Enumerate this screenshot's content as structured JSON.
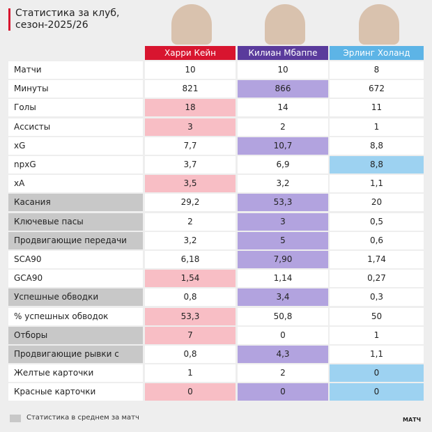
{
  "header": {
    "title": [
      "Статистика за клуб,",
      "сезон-2025/26"
    ]
  },
  "columns": [
    {
      "name": "Харри Кейн",
      "color": "#d8152f",
      "highlight_color": "#f8bec5"
    },
    {
      "name": "Килиан Мбаппе",
      "color": "#5a3b9c",
      "highlight_color": "#b2a3df"
    },
    {
      "name": "Эрлинг Холанд",
      "color": "#5db4e6",
      "highlight_color": "#9dd2f1"
    }
  ],
  "table": {
    "rows": [
      {
        "label": "Матчи",
        "values": [
          "10",
          "10",
          "8"
        ],
        "highlight": [
          false,
          false,
          false
        ],
        "per_match": false
      },
      {
        "label": "Минуты",
        "values": [
          "821",
          "866",
          "672"
        ],
        "highlight": [
          false,
          true,
          false
        ],
        "per_match": false
      },
      {
        "label": "Голы",
        "values": [
          "18",
          "14",
          "11"
        ],
        "highlight": [
          true,
          false,
          false
        ],
        "per_match": false
      },
      {
        "label": "Ассисты",
        "values": [
          "3",
          "2",
          "1"
        ],
        "highlight": [
          true,
          false,
          false
        ],
        "per_match": false
      },
      {
        "label": "xG",
        "values": [
          "7,7",
          "10,7",
          "8,8"
        ],
        "highlight": [
          false,
          true,
          false
        ],
        "per_match": false
      },
      {
        "label": "npxG",
        "values": [
          "3,7",
          "6,9",
          "8,8"
        ],
        "highlight": [
          false,
          false,
          true
        ],
        "per_match": false
      },
      {
        "label": "xA",
        "values": [
          "3,5",
          "3,2",
          "1,1"
        ],
        "highlight": [
          true,
          false,
          false
        ],
        "per_match": false
      },
      {
        "label": "Касания",
        "values": [
          "29,2",
          "53,3",
          "20"
        ],
        "highlight": [
          false,
          true,
          false
        ],
        "per_match": true
      },
      {
        "label": "Ключевые пасы",
        "values": [
          "2",
          "3",
          "0,5"
        ],
        "highlight": [
          false,
          true,
          false
        ],
        "per_match": true
      },
      {
        "label": "Продвигающие передачи",
        "values": [
          "3,2",
          "5",
          "0,6"
        ],
        "highlight": [
          false,
          true,
          false
        ],
        "per_match": true
      },
      {
        "label": "SCA90",
        "values": [
          "6,18",
          "7,90",
          "1,74"
        ],
        "highlight": [
          false,
          true,
          false
        ],
        "per_match": false
      },
      {
        "label": "GCA90",
        "values": [
          "1,54",
          "1,14",
          "0,27"
        ],
        "highlight": [
          true,
          false,
          false
        ],
        "per_match": false
      },
      {
        "label": "Успешные обводки",
        "values": [
          "0,8",
          "3,4",
          "0,3"
        ],
        "highlight": [
          false,
          true,
          false
        ],
        "per_match": true
      },
      {
        "label": "% успешных обводок",
        "values": [
          "53,3",
          "50,8",
          "50"
        ],
        "highlight": [
          true,
          false,
          false
        ],
        "per_match": false
      },
      {
        "label": "Отборы",
        "values": [
          "7",
          "0",
          "1"
        ],
        "highlight": [
          true,
          false,
          false
        ],
        "per_match": true
      },
      {
        "label": "Продвигающие рывки с мячом",
        "values": [
          "0,8",
          "4,3",
          "1,1"
        ],
        "highlight": [
          false,
          true,
          false
        ],
        "per_match": true
      },
      {
        "label": "Желтые карточки",
        "values": [
          "1",
          "2",
          "0"
        ],
        "highlight": [
          false,
          false,
          true
        ],
        "per_match": false
      },
      {
        "label": "Красные карточки",
        "values": [
          "0",
          "0",
          "0"
        ],
        "highlight": [
          true,
          true,
          true
        ],
        "per_match": false
      }
    ]
  },
  "footer": {
    "legend": "Статистика в среднем за матч",
    "logo": "МАТЧ"
  }
}
